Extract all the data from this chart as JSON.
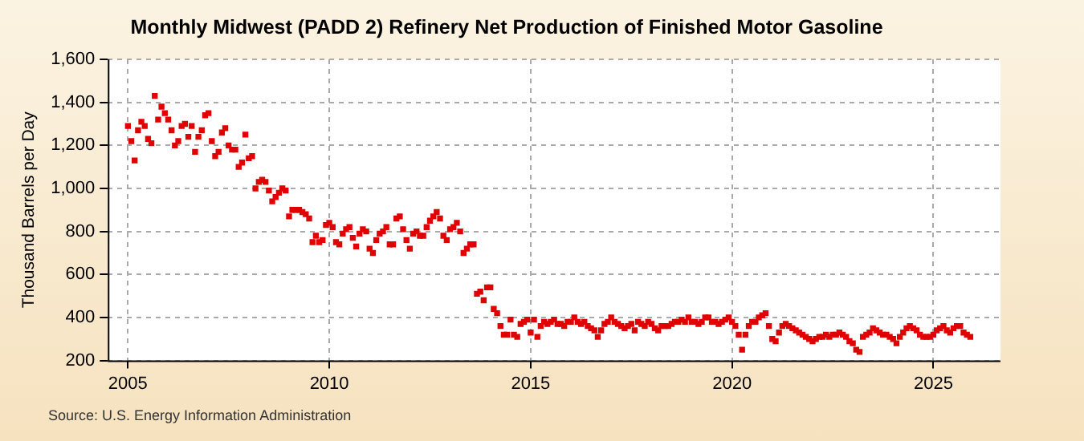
{
  "chart_data": {
    "type": "scatter",
    "title": "Monthly Midwest (PADD 2) Refinery Net Production of Finished Motor Gasoline",
    "ylabel": "Thousand Barrels per Day",
    "annotations": [
      "Source: U.S. Energy Information Administration"
    ],
    "x": [
      "2005-01",
      "2005-02",
      "2005-03",
      "2005-04",
      "2005-05",
      "2005-06",
      "2005-07",
      "2005-08",
      "2005-09",
      "2005-10",
      "2005-11",
      "2005-12",
      "2006-01",
      "2006-02",
      "2006-03",
      "2006-04",
      "2006-05",
      "2006-06",
      "2006-07",
      "2006-08",
      "2006-09",
      "2006-10",
      "2006-11",
      "2006-12",
      "2007-01",
      "2007-02",
      "2007-03",
      "2007-04",
      "2007-05",
      "2007-06",
      "2007-07",
      "2007-08",
      "2007-09",
      "2007-10",
      "2007-11",
      "2007-12",
      "2008-01",
      "2008-02",
      "2008-03",
      "2008-04",
      "2008-05",
      "2008-06",
      "2008-07",
      "2008-08",
      "2008-09",
      "2008-10",
      "2008-11",
      "2008-12",
      "2009-01",
      "2009-02",
      "2009-03",
      "2009-04",
      "2009-05",
      "2009-06",
      "2009-07",
      "2009-08",
      "2009-09",
      "2009-10",
      "2009-11",
      "2009-12",
      "2010-01",
      "2010-02",
      "2010-03",
      "2010-04",
      "2010-05",
      "2010-06",
      "2010-07",
      "2010-08",
      "2010-09",
      "2010-10",
      "2010-11",
      "2010-12",
      "2011-01",
      "2011-02",
      "2011-03",
      "2011-04",
      "2011-05",
      "2011-06",
      "2011-07",
      "2011-08",
      "2011-09",
      "2011-10",
      "2011-11",
      "2011-12",
      "2012-01",
      "2012-02",
      "2012-03",
      "2012-04",
      "2012-05",
      "2012-06",
      "2012-07",
      "2012-08",
      "2012-09",
      "2012-10",
      "2012-11",
      "2012-12",
      "2013-01",
      "2013-02",
      "2013-03",
      "2013-04",
      "2013-05",
      "2013-06",
      "2013-07",
      "2013-08",
      "2013-09",
      "2013-10",
      "2013-11",
      "2013-12",
      "2014-01",
      "2014-02",
      "2014-03",
      "2014-04",
      "2014-05",
      "2014-06",
      "2014-07",
      "2014-08",
      "2014-09",
      "2014-10",
      "2014-11",
      "2014-12",
      "2015-01",
      "2015-02",
      "2015-03",
      "2015-04",
      "2015-05",
      "2015-06",
      "2015-07",
      "2015-08",
      "2015-09",
      "2015-10",
      "2015-11",
      "2015-12",
      "2016-01",
      "2016-02",
      "2016-03",
      "2016-04",
      "2016-05",
      "2016-06",
      "2016-07",
      "2016-08",
      "2016-09",
      "2016-10",
      "2016-11",
      "2016-12",
      "2017-01",
      "2017-02",
      "2017-03",
      "2017-04",
      "2017-05",
      "2017-06",
      "2017-07",
      "2017-08",
      "2017-09",
      "2017-10",
      "2017-11",
      "2017-12",
      "2018-01",
      "2018-02",
      "2018-03",
      "2018-04",
      "2018-05",
      "2018-06",
      "2018-07",
      "2018-08",
      "2018-09",
      "2018-10",
      "2018-11",
      "2018-12",
      "2019-01",
      "2019-02",
      "2019-03",
      "2019-04",
      "2019-05",
      "2019-06",
      "2019-07",
      "2019-08",
      "2019-09",
      "2019-10",
      "2019-11",
      "2019-12",
      "2020-01",
      "2020-02",
      "2020-03",
      "2020-04",
      "2020-05",
      "2020-06",
      "2020-07",
      "2020-08",
      "2020-09",
      "2020-10",
      "2020-11",
      "2020-12",
      "2021-01",
      "2021-02",
      "2021-03",
      "2021-04",
      "2021-05",
      "2021-06",
      "2021-07",
      "2021-08",
      "2021-09",
      "2021-10",
      "2021-11",
      "2021-12",
      "2022-01",
      "2022-02",
      "2022-03",
      "2022-04",
      "2022-05",
      "2022-06",
      "2022-07",
      "2022-08",
      "2022-09",
      "2022-10",
      "2022-11",
      "2022-12",
      "2023-01",
      "2023-02",
      "2023-03",
      "2023-04",
      "2023-05",
      "2023-06",
      "2023-07",
      "2023-08",
      "2023-09",
      "2023-10",
      "2023-11",
      "2023-12",
      "2024-01",
      "2024-02",
      "2024-03",
      "2024-04",
      "2024-05",
      "2024-06",
      "2024-07",
      "2024-08",
      "2024-09",
      "2024-10",
      "2024-11",
      "2024-12",
      "2025-01",
      "2025-02",
      "2025-03",
      "2025-04",
      "2025-05",
      "2025-06",
      "2025-07",
      "2025-08",
      "2025-09",
      "2025-10",
      "2025-11",
      "2025-12"
    ],
    "series": [
      {
        "color": "#e00000",
        "values": [
          1290,
          1220,
          1130,
          1270,
          1310,
          1290,
          1230,
          1210,
          1430,
          1320,
          1380,
          1350,
          1320,
          1270,
          1200,
          1220,
          1290,
          1300,
          1240,
          1290,
          1170,
          1240,
          1270,
          1340,
          1350,
          1220,
          1150,
          1170,
          1260,
          1280,
          1200,
          1180,
          1180,
          1100,
          1120,
          1250,
          1140,
          1150,
          1000,
          1030,
          1040,
          1030,
          990,
          940,
          960,
          980,
          1000,
          990,
          870,
          900,
          900,
          900,
          890,
          880,
          860,
          750,
          780,
          750,
          760,
          830,
          840,
          820,
          750,
          740,
          790,
          810,
          820,
          770,
          730,
          790,
          810,
          800,
          720,
          700,
          760,
          790,
          800,
          820,
          740,
          740,
          860,
          870,
          810,
          760,
          720,
          790,
          800,
          780,
          780,
          820,
          850,
          870,
          890,
          860,
          780,
          760,
          810,
          820,
          840,
          800,
          700,
          720,
          740,
          740,
          510,
          520,
          480,
          540,
          540,
          440,
          420,
          360,
          320,
          320,
          390,
          320,
          310,
          370,
          380,
          390,
          330,
          390,
          310,
          360,
          380,
          370,
          380,
          390,
          370,
          370,
          360,
          380,
          380,
          400,
          380,
          370,
          380,
          360,
          350,
          340,
          310,
          340,
          370,
          380,
          400,
          380,
          370,
          360,
          350,
          360,
          370,
          340,
          380,
          370,
          360,
          380,
          370,
          350,
          340,
          360,
          360,
          360,
          370,
          380,
          380,
          390,
          380,
          400,
          380,
          380,
          370,
          380,
          400,
          400,
          380,
          380,
          370,
          380,
          390,
          400,
          380,
          360,
          320,
          250,
          320,
          360,
          380,
          380,
          400,
          410,
          420,
          360,
          300,
          290,
          330,
          360,
          370,
          360,
          350,
          340,
          330,
          320,
          310,
          300,
          290,
          300,
          310,
          310,
          320,
          310,
          320,
          320,
          330,
          320,
          310,
          290,
          280,
          250,
          240,
          310,
          320,
          330,
          350,
          340,
          330,
          320,
          320,
          310,
          300,
          280,
          310,
          330,
          350,
          360,
          350,
          340,
          320,
          310,
          310,
          310,
          320,
          340,
          350,
          360,
          340,
          330,
          350,
          360,
          360,
          330,
          320,
          310
        ]
      }
    ],
    "xlim": [
      "2004-07",
      "2026-09"
    ],
    "xticks": [
      "2005",
      "2010",
      "2015",
      "2020",
      "2025"
    ],
    "ylim": [
      200,
      1600
    ],
    "yticks": [
      {
        "value": 200,
        "label": "200"
      },
      {
        "value": 400,
        "label": "400"
      },
      {
        "value": 600,
        "label": "600"
      },
      {
        "value": 800,
        "label": "800"
      },
      {
        "value": 1000,
        "label": "1,000"
      },
      {
        "value": 1200,
        "label": "1,200"
      },
      {
        "value": 1400,
        "label": "1,400"
      },
      {
        "value": 1600,
        "label": "1,600"
      }
    ],
    "grid": true,
    "marker": "square",
    "legend": false
  }
}
